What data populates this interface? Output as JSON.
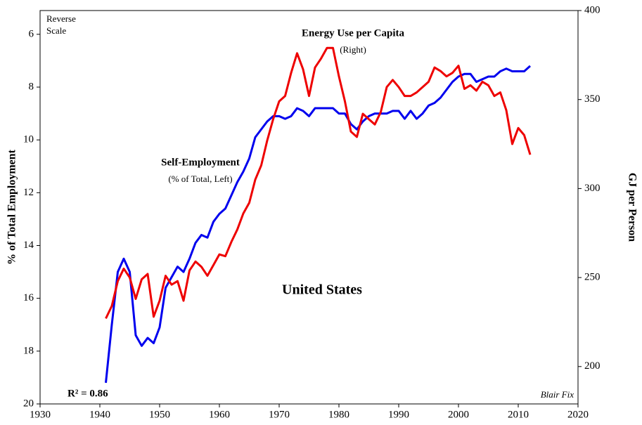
{
  "chart_data": {
    "type": "line",
    "x": [
      1941,
      1942,
      1943,
      1944,
      1945,
      1946,
      1947,
      1948,
      1949,
      1950,
      1951,
      1952,
      1953,
      1954,
      1955,
      1956,
      1957,
      1958,
      1959,
      1960,
      1961,
      1962,
      1963,
      1964,
      1965,
      1966,
      1967,
      1968,
      1969,
      1970,
      1971,
      1972,
      1973,
      1974,
      1975,
      1976,
      1977,
      1978,
      1979,
      1980,
      1981,
      1982,
      1983,
      1984,
      1985,
      1986,
      1987,
      1988,
      1989,
      1990,
      1991,
      1992,
      1993,
      1994,
      1995,
      1996,
      1997,
      1998,
      1999,
      2000,
      2001,
      2002,
      2003,
      2004,
      2005,
      2006,
      2007,
      2008,
      2009,
      2010,
      2011,
      2012
    ],
    "series": [
      {
        "name": "Self-Employment",
        "note": "(% of Total, Left)",
        "color": "#0000ee",
        "axis": "y",
        "values": [
          19.2,
          17.0,
          15.0,
          14.5,
          15.0,
          17.4,
          17.8,
          17.5,
          17.7,
          17.1,
          15.6,
          15.2,
          14.8,
          15.0,
          14.5,
          13.9,
          13.6,
          13.7,
          13.1,
          12.8,
          12.6,
          12.1,
          11.6,
          11.2,
          10.7,
          9.9,
          9.6,
          9.3,
          9.1,
          9.1,
          9.2,
          9.1,
          8.8,
          8.9,
          9.1,
          8.8,
          8.8,
          8.8,
          8.8,
          9.0,
          9.0,
          9.4,
          9.6,
          9.3,
          9.1,
          9.0,
          9.0,
          9.0,
          8.9,
          8.9,
          9.2,
          8.9,
          9.2,
          9.0,
          8.7,
          8.6,
          8.4,
          8.1,
          7.8,
          7.6,
          7.5,
          7.5,
          7.8,
          7.7,
          7.6,
          7.6,
          7.4,
          7.3,
          7.4,
          7.4,
          7.4,
          7.2
        ]
      },
      {
        "name": "Energy Use per Capita",
        "note": "(Right)",
        "color": "#ee0000",
        "axis": "y2",
        "values": [
          227,
          234,
          248,
          255,
          250,
          238,
          249,
          252,
          228,
          237,
          251,
          246,
          248,
          237,
          254,
          259,
          256,
          251,
          257,
          263,
          262,
          270,
          277,
          286,
          292,
          305,
          313,
          327,
          339,
          349,
          352,
          365,
          376,
          367,
          352,
          368,
          373,
          379,
          379,
          363,
          349,
          332,
          329,
          342,
          339,
          336,
          343,
          357,
          361,
          357,
          352,
          352,
          354,
          357,
          360,
          368,
          366,
          363,
          365,
          369,
          356,
          358,
          355,
          360,
          358,
          352,
          354,
          344,
          325,
          334,
          330,
          319
        ]
      }
    ],
    "xlim": [
      1930,
      2020
    ],
    "xticks": [
      1930,
      1940,
      1950,
      1960,
      1970,
      1980,
      1990,
      2000,
      2010,
      2020
    ],
    "ylim": [
      20,
      5.1
    ],
    "yticks": [
      6,
      8,
      10,
      12,
      14,
      16,
      18,
      20
    ],
    "reverse_y": true,
    "y2lim": [
      179,
      400
    ],
    "y2ticks": [
      200,
      250,
      300,
      350,
      400
    ],
    "y_label": "% of Total Employment",
    "y2_label": "GJ per Person",
    "reverse_note": [
      "Reverse",
      "Scale"
    ],
    "region": "United States",
    "r_squared": "R² = 0.86",
    "credit": "Blair Fix"
  }
}
